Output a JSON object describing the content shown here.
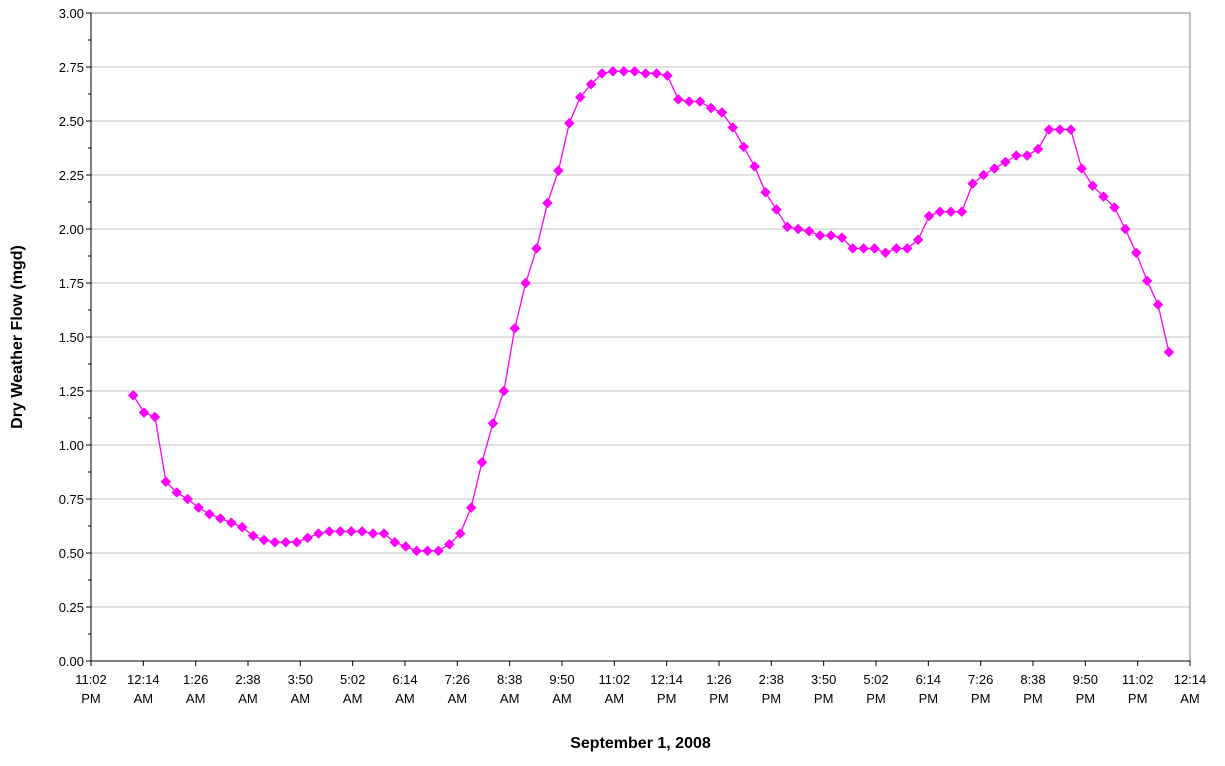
{
  "chart_data": {
    "type": "line",
    "title": "",
    "xlabel": "September 1, 2008",
    "ylabel": "Dry Weather Flow (mgd)",
    "ylim": [
      0,
      3
    ],
    "yticks": [
      "0.00",
      "0.25",
      "0.50",
      "0.75",
      "1.00",
      "1.25",
      "1.50",
      "1.75",
      "2.00",
      "2.25",
      "2.50",
      "2.75",
      "3.00"
    ],
    "xlim": [
      "11:02 PM",
      "12:14 AM"
    ],
    "xtick_labels": [
      [
        "11:02",
        "PM"
      ],
      [
        "12:14",
        "AM"
      ],
      [
        "1:26",
        "AM"
      ],
      [
        "2:38",
        "AM"
      ],
      [
        "3:50",
        "AM"
      ],
      [
        "5:02",
        "AM"
      ],
      [
        "6:14",
        "AM"
      ],
      [
        "7:26",
        "AM"
      ],
      [
        "8:38",
        "AM"
      ],
      [
        "9:50",
        "AM"
      ],
      [
        "11:02",
        "AM"
      ],
      [
        "12:14",
        "PM"
      ],
      [
        "1:26",
        "PM"
      ],
      [
        "2:38",
        "PM"
      ],
      [
        "3:50",
        "PM"
      ],
      [
        "5:02",
        "PM"
      ],
      [
        "6:14",
        "PM"
      ],
      [
        "7:26",
        "PM"
      ],
      [
        "8:38",
        "PM"
      ],
      [
        "9:50",
        "PM"
      ],
      [
        "11:02",
        "PM"
      ],
      [
        "12:14",
        "AM"
      ]
    ],
    "grid": true,
    "legend": "none",
    "colors": {
      "series": "#FF00FF",
      "grid": "#C0C0C0",
      "axis": "#000000"
    },
    "series": [
      {
        "x": [
          "12:00 AM",
          "12:15 AM",
          "12:30 AM",
          "12:45 AM",
          "1:00 AM",
          "1:15 AM",
          "1:30 AM",
          "1:45 AM",
          "2:00 AM",
          "2:15 AM",
          "2:30 AM",
          "2:45 AM",
          "3:00 AM",
          "3:15 AM",
          "3:30 AM",
          "3:45 AM",
          "4:00 AM",
          "4:15 AM",
          "4:30 AM",
          "4:45 AM",
          "5:00 AM",
          "5:15 AM",
          "5:30 AM",
          "5:45 AM",
          "6:00 AM",
          "6:15 AM",
          "6:30 AM",
          "6:45 AM",
          "7:00 AM",
          "7:15 AM",
          "7:30 AM",
          "7:45 AM",
          "8:00 AM",
          "8:15 AM",
          "8:30 AM",
          "8:45 AM",
          "9:00 AM",
          "9:15 AM",
          "9:30 AM",
          "9:45 AM",
          "10:00 AM",
          "10:15 AM",
          "10:30 AM",
          "10:45 AM",
          "11:00 AM",
          "11:15 AM",
          "11:30 AM",
          "11:45 AM",
          "12:00 PM",
          "12:15 PM",
          "12:30 PM",
          "12:45 PM",
          "1:00 PM",
          "1:15 PM",
          "1:30 PM",
          "1:45 PM",
          "2:00 PM",
          "2:15 PM",
          "2:30 PM",
          "2:45 PM",
          "3:00 PM",
          "3:15 PM",
          "3:30 PM",
          "3:45 PM",
          "4:00 PM",
          "4:15 PM",
          "4:30 PM",
          "4:45 PM",
          "5:00 PM",
          "5:15 PM",
          "5:30 PM",
          "5:45 PM",
          "6:00 PM",
          "6:15 PM",
          "6:30 PM",
          "6:45 PM",
          "7:00 PM",
          "7:15 PM",
          "7:30 PM",
          "7:45 PM",
          "8:00 PM",
          "8:15 PM",
          "8:30 PM",
          "8:45 PM",
          "9:00 PM",
          "9:15 PM",
          "9:30 PM",
          "9:45 PM",
          "10:00 PM",
          "10:15 PM",
          "10:30 PM",
          "10:45 PM",
          "11:00 PM",
          "11:15 PM",
          "11:30 PM",
          "11:45 PM"
        ],
        "values": [
          1.23,
          1.15,
          1.13,
          0.83,
          0.78,
          0.75,
          0.71,
          0.68,
          0.66,
          0.64,
          0.62,
          0.58,
          0.56,
          0.55,
          0.55,
          0.55,
          0.57,
          0.59,
          0.6,
          0.6,
          0.6,
          0.6,
          0.59,
          0.59,
          0.55,
          0.53,
          0.51,
          0.51,
          0.51,
          0.54,
          0.59,
          0.71,
          0.92,
          1.1,
          1.25,
          1.54,
          1.75,
          1.91,
          2.12,
          2.27,
          2.49,
          2.61,
          2.67,
          2.72,
          2.73,
          2.73,
          2.73,
          2.72,
          2.72,
          2.71,
          2.6,
          2.59,
          2.59,
          2.56,
          2.54,
          2.47,
          2.38,
          2.29,
          2.17,
          2.09,
          2.01,
          2.0,
          1.99,
          1.97,
          1.97,
          1.96,
          1.91,
          1.91,
          1.91,
          1.89,
          1.91,
          1.91,
          1.95,
          2.06,
          2.08,
          2.08,
          2.08,
          2.21,
          2.25,
          2.28,
          2.31,
          2.34,
          2.34,
          2.37,
          2.46,
          2.46,
          2.46,
          2.28,
          2.2,
          2.15,
          2.1,
          2.0,
          1.89,
          1.76,
          1.65,
          1.43
        ]
      }
    ]
  }
}
